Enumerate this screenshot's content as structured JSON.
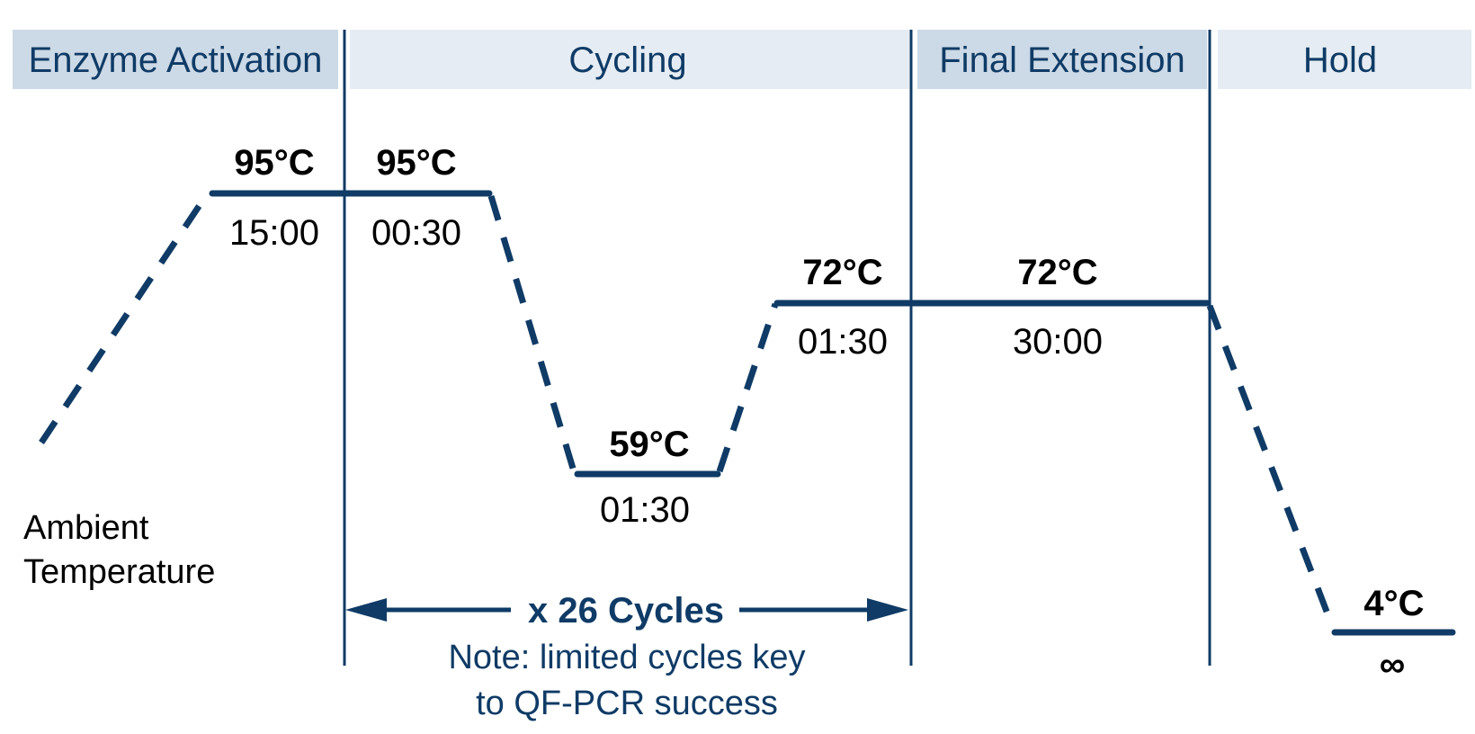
{
  "phases": {
    "enzyme_activation": "Enzyme Activation",
    "cycling": "Cycling",
    "final_extension": "Final Extension",
    "hold": "Hold"
  },
  "colors": {
    "accent": "#0f3b66",
    "header_dark": "#ccd9e6",
    "header_light": "#e5ecf3"
  },
  "steps": {
    "activation": {
      "temp": "95°C",
      "time": "15:00"
    },
    "denature": {
      "temp": "95°C",
      "time": "00:30"
    },
    "anneal": {
      "temp": "59°C",
      "time": "01:30"
    },
    "extend": {
      "temp": "72°C",
      "time": "01:30"
    },
    "final_extension": {
      "temp": "72°C",
      "time": "30:00"
    },
    "hold": {
      "temp": "4°C",
      "time": "∞"
    }
  },
  "ambient": {
    "line1": "Ambient",
    "line2": "Temperature"
  },
  "cycle_count": "x 26 Cycles",
  "note": {
    "line1": "Note:  limited cycles key",
    "line2": "to QF-PCR success"
  }
}
